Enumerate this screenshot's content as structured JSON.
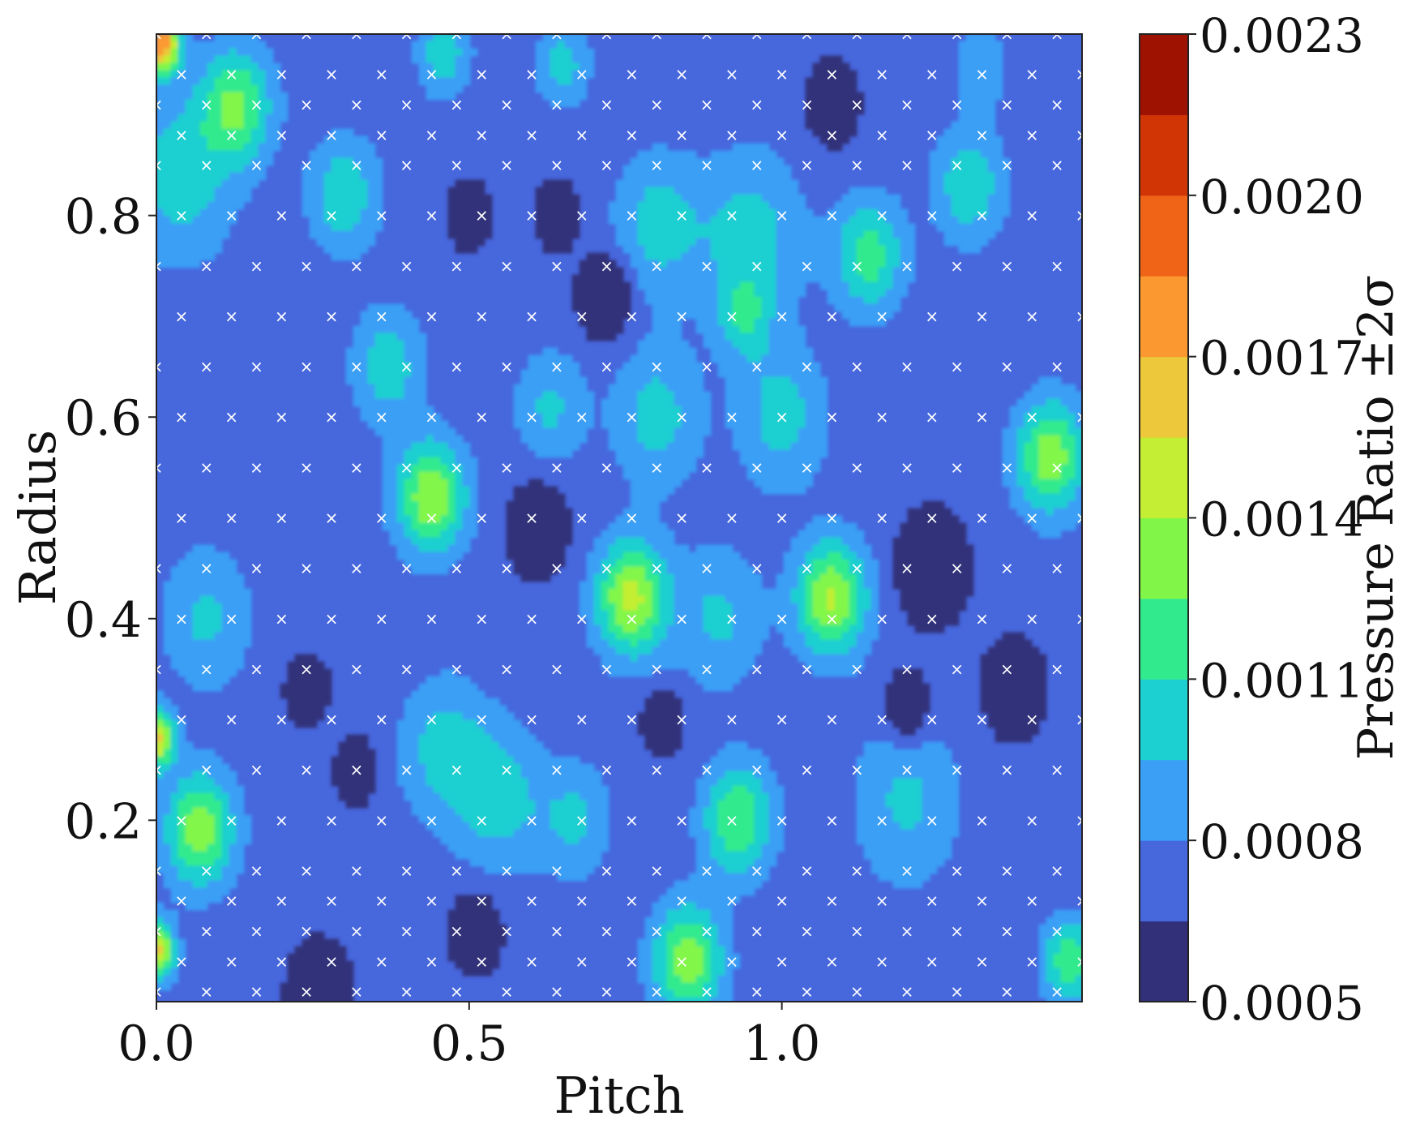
{
  "chart_data": {
    "type": "heatmap",
    "subtype": "filled-contour",
    "title": "",
    "xlabel": "Pitch",
    "ylabel": "Radius",
    "xlim": [
      0.0,
      1.48
    ],
    "ylim": [
      0.02,
      0.98
    ],
    "x_ticks": [
      {
        "value": 0.0,
        "label": "0.0"
      },
      {
        "value": 0.5,
        "label": "0.5"
      },
      {
        "value": 1.0,
        "label": "1.0"
      }
    ],
    "y_ticks": [
      {
        "value": 0.2,
        "label": "0.2"
      },
      {
        "value": 0.4,
        "label": "0.4"
      },
      {
        "value": 0.6,
        "label": "0.6"
      },
      {
        "value": 0.8,
        "label": "0.8"
      }
    ],
    "grid": false,
    "colorbar": {
      "label": "Pressure Ratio ±2σ",
      "range": [
        0.0005,
        0.0023
      ],
      "tick_labels": [
        "0.0005",
        "0.0008",
        "0.0011",
        "0.0014",
        "0.0017",
        "0.0020",
        "0.0023"
      ],
      "tick_values": [
        0.0005,
        0.0008,
        0.0011,
        0.0014,
        0.0017,
        0.002,
        0.0023
      ],
      "levels": 12,
      "colors": [
        "#33307a",
        "#4767dd",
        "#3b9ff6",
        "#1ccfd0",
        "#32ea8e",
        "#82f648",
        "#c4ee33",
        "#ecc83a",
        "#fb9930",
        "#f06418",
        "#d13506",
        "#9e1202"
      ]
    },
    "background_level": 0.0007,
    "regions": [
      {
        "pitch": 0.04,
        "radius": 0.84,
        "spread": 0.06,
        "value": 0.00105
      },
      {
        "pitch": 0.13,
        "radius": 0.91,
        "spread": 0.04,
        "value": 0.00125
      },
      {
        "pitch": 0.3,
        "radius": 0.82,
        "spread": 0.04,
        "value": 0.00108
      },
      {
        "pitch": 0.46,
        "radius": 0.96,
        "spread": 0.03,
        "value": 0.00105
      },
      {
        "pitch": 0.65,
        "radius": 0.95,
        "spread": 0.03,
        "value": 0.00102
      },
      {
        "pitch": 1.3,
        "radius": 0.83,
        "spread": 0.04,
        "value": 0.00108
      },
      {
        "pitch": 1.32,
        "radius": 0.95,
        "spread": 0.03,
        "value": 0.00092
      },
      {
        "pitch": 0.8,
        "radius": 0.79,
        "spread": 0.05,
        "value": 0.00102
      },
      {
        "pitch": 0.95,
        "radius": 0.78,
        "spread": 0.06,
        "value": 0.00102
      },
      {
        "pitch": 1.14,
        "radius": 0.76,
        "spread": 0.04,
        "value": 0.00118
      },
      {
        "pitch": 0.94,
        "radius": 0.7,
        "spread": 0.03,
        "value": 0.00102
      },
      {
        "pitch": 0.37,
        "radius": 0.65,
        "spread": 0.04,
        "value": 0.00105
      },
      {
        "pitch": 0.63,
        "radius": 0.61,
        "spread": 0.04,
        "value": 0.00098
      },
      {
        "pitch": 0.8,
        "radius": 0.6,
        "spread": 0.05,
        "value": 0.00102
      },
      {
        "pitch": 1.0,
        "radius": 0.6,
        "spread": 0.05,
        "value": 0.00102
      },
      {
        "pitch": 1.43,
        "radius": 0.56,
        "spread": 0.04,
        "value": 0.00135
      },
      {
        "pitch": 0.44,
        "radius": 0.52,
        "spread": 0.04,
        "value": 0.00138
      },
      {
        "pitch": 0.76,
        "radius": 0.42,
        "spread": 0.04,
        "value": 0.00145
      },
      {
        "pitch": 0.9,
        "radius": 0.4,
        "spread": 0.05,
        "value": 0.00098
      },
      {
        "pitch": 1.08,
        "radius": 0.42,
        "spread": 0.04,
        "value": 0.00142
      },
      {
        "pitch": 0.08,
        "radius": 0.4,
        "spread": 0.05,
        "value": 0.00098
      },
      {
        "pitch": 0.07,
        "radius": 0.19,
        "spread": 0.04,
        "value": 0.00135
      },
      {
        "pitch": 0.46,
        "radius": 0.27,
        "spread": 0.05,
        "value": 0.00102
      },
      {
        "pitch": 0.55,
        "radius": 0.22,
        "spread": 0.05,
        "value": 0.00102
      },
      {
        "pitch": 0.67,
        "radius": 0.2,
        "spread": 0.04,
        "value": 0.00098
      },
      {
        "pitch": 0.93,
        "radius": 0.2,
        "spread": 0.04,
        "value": 0.00125
      },
      {
        "pitch": 1.2,
        "radius": 0.22,
        "spread": 0.06,
        "value": 0.00098
      },
      {
        "pitch": 0.85,
        "radius": 0.06,
        "spread": 0.04,
        "value": 0.00135
      },
      {
        "pitch": 1.46,
        "radius": 0.06,
        "spread": 0.03,
        "value": 0.00122
      },
      {
        "pitch": 0.01,
        "radius": 0.97,
        "spread": 0.02,
        "value": 0.0018
      },
      {
        "pitch": 0.0,
        "radius": 0.28,
        "spread": 0.02,
        "value": 0.0016
      },
      {
        "pitch": 0.0,
        "radius": 0.07,
        "spread": 0.02,
        "value": 0.0016
      },
      {
        "pitch": 0.72,
        "radius": 0.72,
        "spread": 0.03,
        "value": 0.0004
      },
      {
        "pitch": 1.08,
        "radius": 0.91,
        "spread": 0.025,
        "value": 0.0004
      },
      {
        "pitch": 0.61,
        "radius": 0.49,
        "spread": 0.03,
        "value": 0.0004
      },
      {
        "pitch": 1.24,
        "radius": 0.45,
        "spread": 0.035,
        "value": 0.0004
      },
      {
        "pitch": 1.37,
        "radius": 0.33,
        "spread": 0.03,
        "value": 0.0004
      },
      {
        "pitch": 1.2,
        "radius": 0.31,
        "spread": 0.025,
        "value": 0.0004
      },
      {
        "pitch": 0.32,
        "radius": 0.25,
        "spread": 0.02,
        "value": 0.0004
      },
      {
        "pitch": 0.51,
        "radius": 0.09,
        "spread": 0.025,
        "value": 0.0004
      },
      {
        "pitch": 0.26,
        "radius": 0.03,
        "spread": 0.03,
        "value": 0.0004
      },
      {
        "pitch": 0.81,
        "radius": 0.3,
        "spread": 0.02,
        "value": 0.0004
      },
      {
        "pitch": 0.24,
        "radius": 0.33,
        "spread": 0.02,
        "value": 0.0004
      },
      {
        "pitch": 0.5,
        "radius": 0.8,
        "spread": 0.02,
        "value": 0.0004
      },
      {
        "pitch": 0.64,
        "radius": 0.8,
        "spread": 0.02,
        "value": 0.0004
      }
    ],
    "sample_points": {
      "marker": "×",
      "color": "#ffffff",
      "radius_rows": [
        0.03,
        0.06,
        0.09,
        0.12,
        0.15,
        0.2,
        0.25,
        0.3,
        0.35,
        0.4,
        0.45,
        0.5,
        0.55,
        0.6,
        0.65,
        0.7,
        0.75,
        0.8,
        0.85,
        0.88,
        0.91,
        0.94,
        0.98
      ],
      "pitch_spacing": 0.08
    }
  }
}
